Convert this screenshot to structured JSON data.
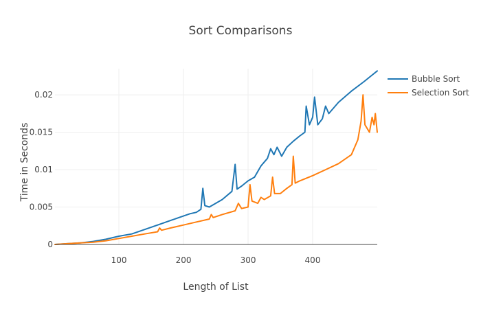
{
  "chart_data": {
    "type": "line",
    "title": "Sort Comparisons",
    "xlabel": "Length of List",
    "ylabel": "Time in Seconds",
    "xlim": [
      1,
      500
    ],
    "ylim": [
      0,
      0.0235
    ],
    "x_ticks": [
      {
        "value": 100,
        "label": "100"
      },
      {
        "value": 200,
        "label": "200"
      },
      {
        "value": 300,
        "label": "300"
      },
      {
        "value": 400,
        "label": "400"
      }
    ],
    "y_ticks": [
      {
        "value": 0,
        "label": "0"
      },
      {
        "value": 0.005,
        "label": "0.005"
      },
      {
        "value": 0.01,
        "label": "0.01"
      },
      {
        "value": 0.015,
        "label": "0.015"
      },
      {
        "value": 0.02,
        "label": "0.02"
      }
    ],
    "grid": true,
    "legend_position": "top-right",
    "series": [
      {
        "name": "Bubble Sort",
        "color": "#1f77b4",
        "points": [
          [
            1,
            0
          ],
          [
            20,
            0.0001
          ],
          [
            40,
            0.0002
          ],
          [
            60,
            0.0004
          ],
          [
            80,
            0.0007
          ],
          [
            100,
            0.0011
          ],
          [
            120,
            0.0014
          ],
          [
            140,
            0.002
          ],
          [
            160,
            0.0026
          ],
          [
            180,
            0.0032
          ],
          [
            200,
            0.0038
          ],
          [
            210,
            0.0041
          ],
          [
            220,
            0.0043
          ],
          [
            227,
            0.0047
          ],
          [
            230,
            0.0075
          ],
          [
            233,
            0.0052
          ],
          [
            240,
            0.005
          ],
          [
            260,
            0.006
          ],
          [
            275,
            0.0071
          ],
          [
            280,
            0.0107
          ],
          [
            283,
            0.0074
          ],
          [
            290,
            0.0078
          ],
          [
            300,
            0.0085
          ],
          [
            310,
            0.009
          ],
          [
            320,
            0.0105
          ],
          [
            330,
            0.0115
          ],
          [
            335,
            0.0128
          ],
          [
            340,
            0.012
          ],
          [
            345,
            0.013
          ],
          [
            352,
            0.0118
          ],
          [
            360,
            0.013
          ],
          [
            370,
            0.0138
          ],
          [
            380,
            0.0145
          ],
          [
            388,
            0.015
          ],
          [
            390,
            0.0185
          ],
          [
            395,
            0.016
          ],
          [
            400,
            0.017
          ],
          [
            403,
            0.0197
          ],
          [
            408,
            0.016
          ],
          [
            415,
            0.0168
          ],
          [
            420,
            0.0185
          ],
          [
            425,
            0.0175
          ],
          [
            440,
            0.019
          ],
          [
            460,
            0.0205
          ],
          [
            480,
            0.0218
          ],
          [
            490,
            0.0225
          ],
          [
            500,
            0.0232
          ]
        ]
      },
      {
        "name": "Selection Sort",
        "color": "#ff7f0e",
        "points": [
          [
            1,
            0
          ],
          [
            20,
            0.0001
          ],
          [
            40,
            0.0002
          ],
          [
            60,
            0.0003
          ],
          [
            80,
            0.0005
          ],
          [
            100,
            0.0008
          ],
          [
            120,
            0.0011
          ],
          [
            140,
            0.0014
          ],
          [
            160,
            0.0017
          ],
          [
            163,
            0.0022
          ],
          [
            166,
            0.0019
          ],
          [
            180,
            0.0022
          ],
          [
            200,
            0.0026
          ],
          [
            220,
            0.003
          ],
          [
            240,
            0.0034
          ],
          [
            243,
            0.004
          ],
          [
            246,
            0.0036
          ],
          [
            260,
            0.004
          ],
          [
            280,
            0.0045
          ],
          [
            285,
            0.0055
          ],
          [
            290,
            0.0048
          ],
          [
            300,
            0.005
          ],
          [
            303,
            0.008
          ],
          [
            306,
            0.0058
          ],
          [
            315,
            0.0055
          ],
          [
            320,
            0.0063
          ],
          [
            325,
            0.006
          ],
          [
            335,
            0.0065
          ],
          [
            338,
            0.009
          ],
          [
            341,
            0.0068
          ],
          [
            350,
            0.0068
          ],
          [
            360,
            0.0075
          ],
          [
            368,
            0.008
          ],
          [
            370,
            0.0118
          ],
          [
            373,
            0.0082
          ],
          [
            380,
            0.0085
          ],
          [
            400,
            0.0092
          ],
          [
            420,
            0.01
          ],
          [
            440,
            0.0108
          ],
          [
            460,
            0.012
          ],
          [
            470,
            0.014
          ],
          [
            475,
            0.0165
          ],
          [
            478,
            0.02
          ],
          [
            481,
            0.016
          ],
          [
            488,
            0.015
          ],
          [
            492,
            0.017
          ],
          [
            495,
            0.016
          ],
          [
            497,
            0.0175
          ],
          [
            500,
            0.015
          ]
        ]
      }
    ]
  }
}
